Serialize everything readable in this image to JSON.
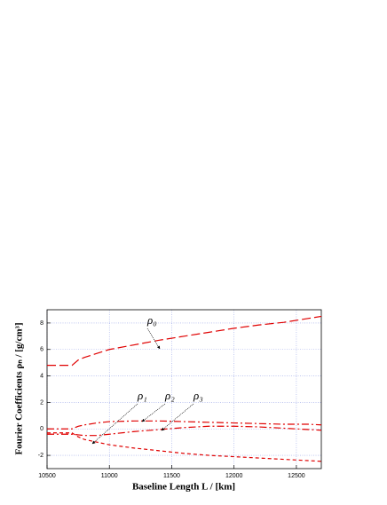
{
  "chart_data": {
    "type": "line",
    "xlabel": "Baseline Length L / [km]",
    "ylabel": "Fourier Coefficients ρₙ / [g/cm³]",
    "x": [
      10500,
      10600,
      10700,
      10750,
      10800,
      10900,
      11000,
      11200,
      11400,
      11600,
      11800,
      12000,
      12200,
      12400,
      12600,
      12700
    ],
    "series": [
      {
        "name": "ρ₀",
        "color": "#e00000",
        "values": [
          4.8,
          4.8,
          4.8,
          5.2,
          5.4,
          5.7,
          6.0,
          6.35,
          6.7,
          7.0,
          7.3,
          7.6,
          7.85,
          8.05,
          8.35,
          8.5
        ]
      },
      {
        "name": "ρ₁",
        "color": "#e00000",
        "values": [
          -0.3,
          -0.3,
          -0.3,
          -0.6,
          -0.8,
          -1.0,
          -1.2,
          -1.45,
          -1.65,
          -1.85,
          -2.0,
          -2.1,
          -2.2,
          -2.3,
          -2.4,
          -2.45
        ]
      },
      {
        "name": "ρ₂",
        "color": "#e00000",
        "values": [
          0,
          0,
          0,
          0.2,
          0.3,
          0.45,
          0.55,
          0.6,
          0.6,
          0.55,
          0.5,
          0.45,
          0.4,
          0.35,
          0.35,
          0.3
        ]
      },
      {
        "name": "ρ₃",
        "color": "#e00000",
        "values": [
          -0.4,
          -0.4,
          -0.4,
          -0.45,
          -0.5,
          -0.5,
          -0.4,
          -0.2,
          -0.05,
          0.1,
          0.2,
          0.2,
          0.15,
          0.05,
          -0.05,
          -0.1
        ]
      }
    ],
    "xlim": [
      10500,
      12700
    ],
    "xticks": [
      10500,
      11000,
      11500,
      12000,
      12500
    ],
    "ylim": [
      -3,
      9
    ],
    "yticks": [
      -2,
      0,
      2,
      4,
      6,
      8
    ],
    "grid": true
  }
}
